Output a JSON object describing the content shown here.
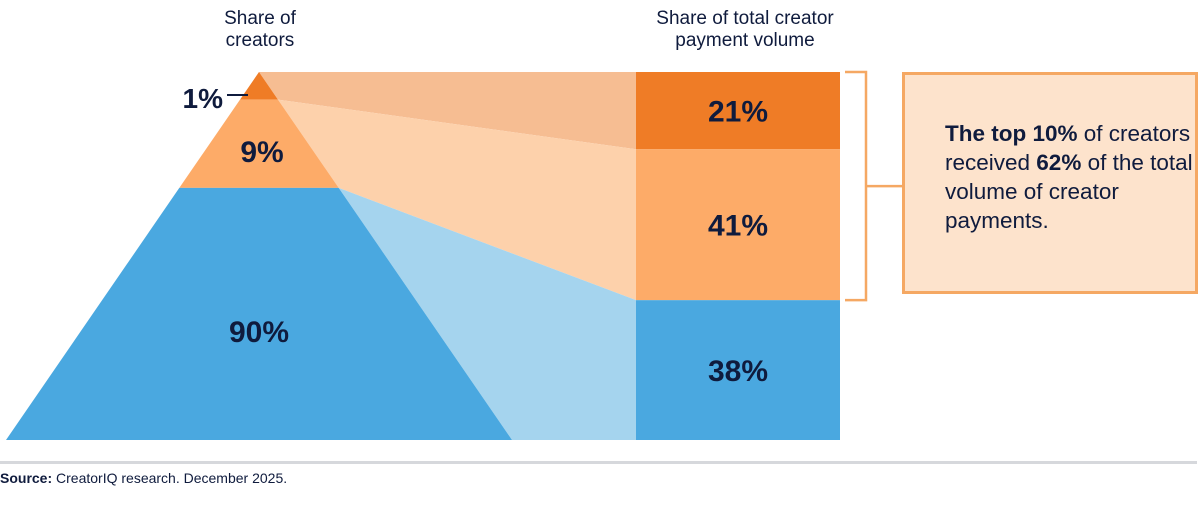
{
  "chart_data": {
    "type": "funnel-to-stacked-bar",
    "left_header_lines": [
      "Share of",
      "creators"
    ],
    "right_header_lines": [
      "Share of total creator",
      "payment volume"
    ],
    "segments": [
      {
        "creators_pct": 1,
        "creators_label": "1%",
        "payment_pct": 21,
        "payment_label": "21%"
      },
      {
        "creators_pct": 9,
        "creators_label": "9%",
        "payment_pct": 41,
        "payment_label": "41%"
      },
      {
        "creators_pct": 90,
        "creators_label": "90%",
        "payment_pct": 38,
        "payment_label": "38%"
      }
    ],
    "colors": {
      "top_dark": "#ef7c26",
      "top_light": "#f6bd92",
      "mid_dark": "#fdab68",
      "mid_light": "#fdd1ab",
      "bottom_dark": "#4aa8e0",
      "bottom_light": "#a5d4ee",
      "bracket": "#f5a863",
      "label": "#0f1b3d"
    }
  },
  "callout": {
    "bold_1": "The top 10%",
    "text_1": " of creators received ",
    "bold_2": "62%",
    "text_2": " of the total volume of creator payments."
  },
  "source": {
    "label": "Source:",
    "text": " CreatorIQ research. December 2025."
  }
}
